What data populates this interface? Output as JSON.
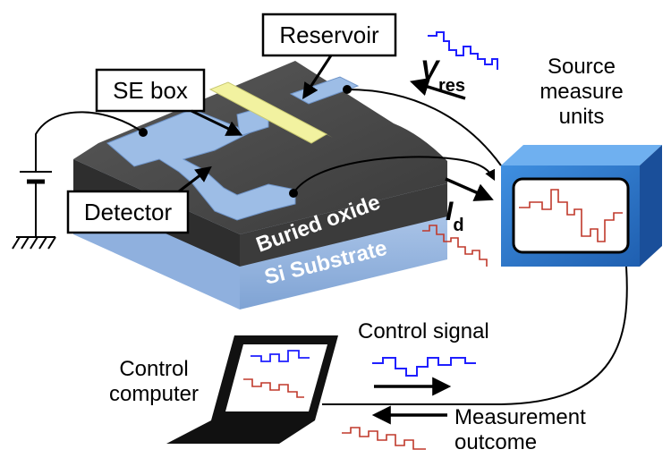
{
  "labels": {
    "reservoir": "Reservoir",
    "se_box": "SE box",
    "detector": "Detector",
    "buried_oxide": "Buried oxide",
    "si_substrate": "Si Substrate",
    "smu_line1": "Source",
    "smu_line2": "measure",
    "smu_line3": "units",
    "v_main": "V",
    "v_sub": "res",
    "i_main": "I",
    "i_sub": "d",
    "control_signal": "Control signal",
    "computer_line1": "Control",
    "computer_line2": "computer",
    "measurement_line1": "Measurement",
    "measurement_line2": "outcome"
  },
  "colors": {
    "control_signal": "#1f1fff",
    "measurement_signal": "#c0392b",
    "device_blue": "#9dbde6",
    "reservoir_yellow": "#f2f2a0",
    "smu_blue": "#2f7fd6"
  }
}
